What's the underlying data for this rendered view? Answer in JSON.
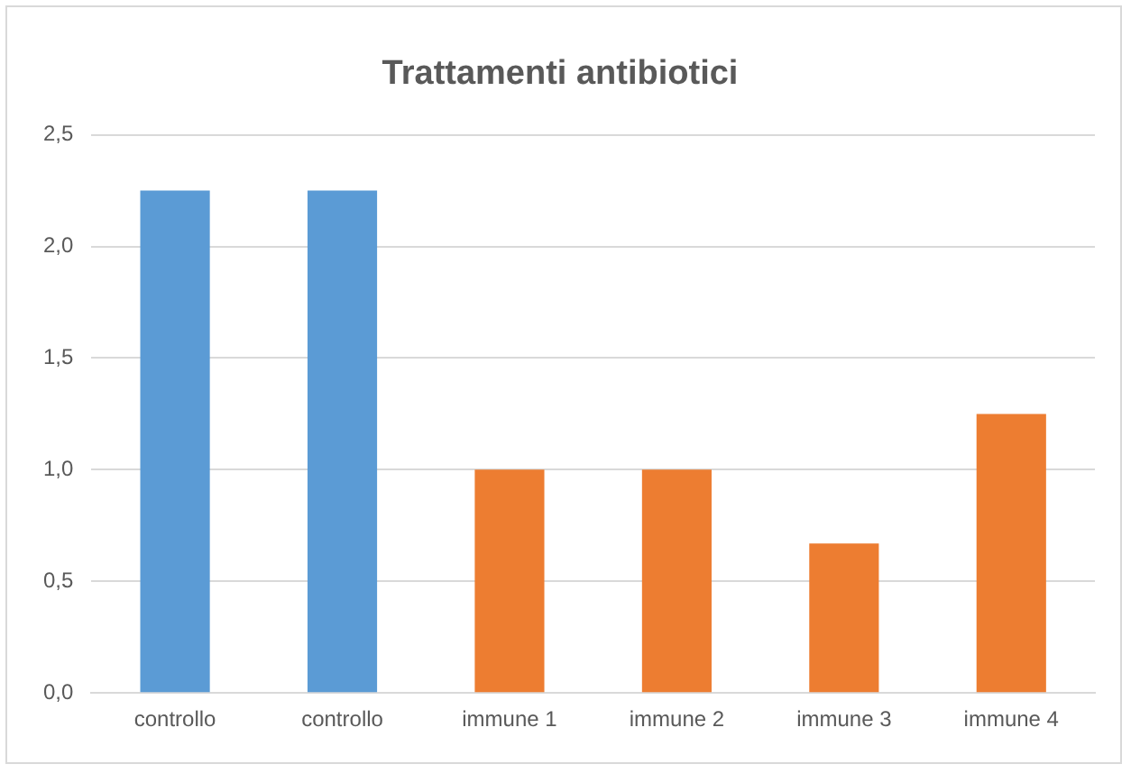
{
  "chart_data": {
    "type": "bar",
    "title": "Trattamenti antibiotici",
    "categories": [
      "controllo",
      "controllo",
      "immune 1",
      "immune 2",
      "immune 3",
      "immune 4"
    ],
    "values": [
      2.25,
      2.25,
      1.0,
      1.0,
      0.67,
      1.25
    ],
    "colors": [
      "#5b9bd5",
      "#5b9bd5",
      "#ed7d31",
      "#ed7d31",
      "#ed7d31",
      "#ed7d31"
    ],
    "ylim": [
      0,
      2.5
    ],
    "yticks": [
      {
        "value": 0,
        "label": "0,0"
      },
      {
        "value": 0.5,
        "label": "0,5"
      },
      {
        "value": 1,
        "label": "1,0"
      },
      {
        "value": 1.5,
        "label": "1,5"
      },
      {
        "value": 2,
        "label": "2,0"
      },
      {
        "value": 2.5,
        "label": "2,5"
      }
    ],
    "grid": "y",
    "legend": false
  }
}
